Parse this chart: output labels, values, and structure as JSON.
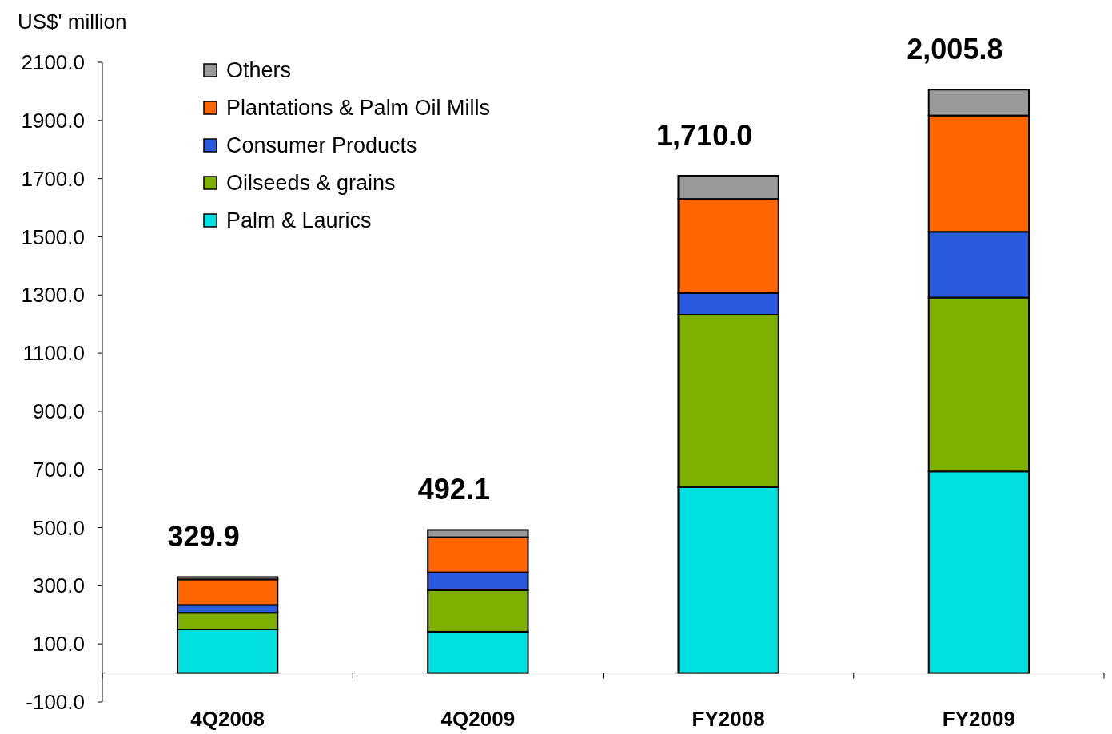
{
  "chart_data": {
    "type": "bar",
    "stacked": true,
    "ylabel": "US$' million",
    "categories": [
      "4Q2008",
      "4Q2009",
      "FY2008",
      "FY2009"
    ],
    "series": [
      {
        "name": "Palm & Laurics",
        "color": "#00e0e0",
        "values": [
          150,
          142,
          639,
          693
        ]
      },
      {
        "name": "Oilseeds & grains",
        "color": "#7fb000",
        "values": [
          57,
          143,
          593,
          598
        ]
      },
      {
        "name": "Consumer Products",
        "color": "#2a5ae0",
        "values": [
          27,
          61,
          75,
          226
        ]
      },
      {
        "name": "Plantations & Palm Oil Mills",
        "color": "#ff6600",
        "values": [
          88,
          121,
          323,
          400
        ]
      },
      {
        "name": "Others",
        "color": "#999999",
        "values": [
          8,
          25,
          80,
          89
        ]
      }
    ],
    "totals": [
      "329.9",
      "492.1",
      "1,710.0",
      "2,005.8"
    ],
    "ylim": [
      -100,
      2100
    ],
    "yticks": [
      {
        "value": -100,
        "label": "-100.0"
      },
      {
        "value": 100,
        "label": "100.0"
      },
      {
        "value": 300,
        "label": "300.0"
      },
      {
        "value": 500,
        "label": "500.0"
      },
      {
        "value": 700,
        "label": "700.0"
      },
      {
        "value": 900,
        "label": "900.0"
      },
      {
        "value": 1100,
        "label": "1100.0"
      },
      {
        "value": 1300,
        "label": "1300.0"
      },
      {
        "value": 1500,
        "label": "1500.0"
      },
      {
        "value": 1700,
        "label": "1700.0"
      },
      {
        "value": 1900,
        "label": "1900.0"
      },
      {
        "value": 2100,
        "label": "2100.0"
      }
    ],
    "legend": "top left",
    "grid": false
  }
}
